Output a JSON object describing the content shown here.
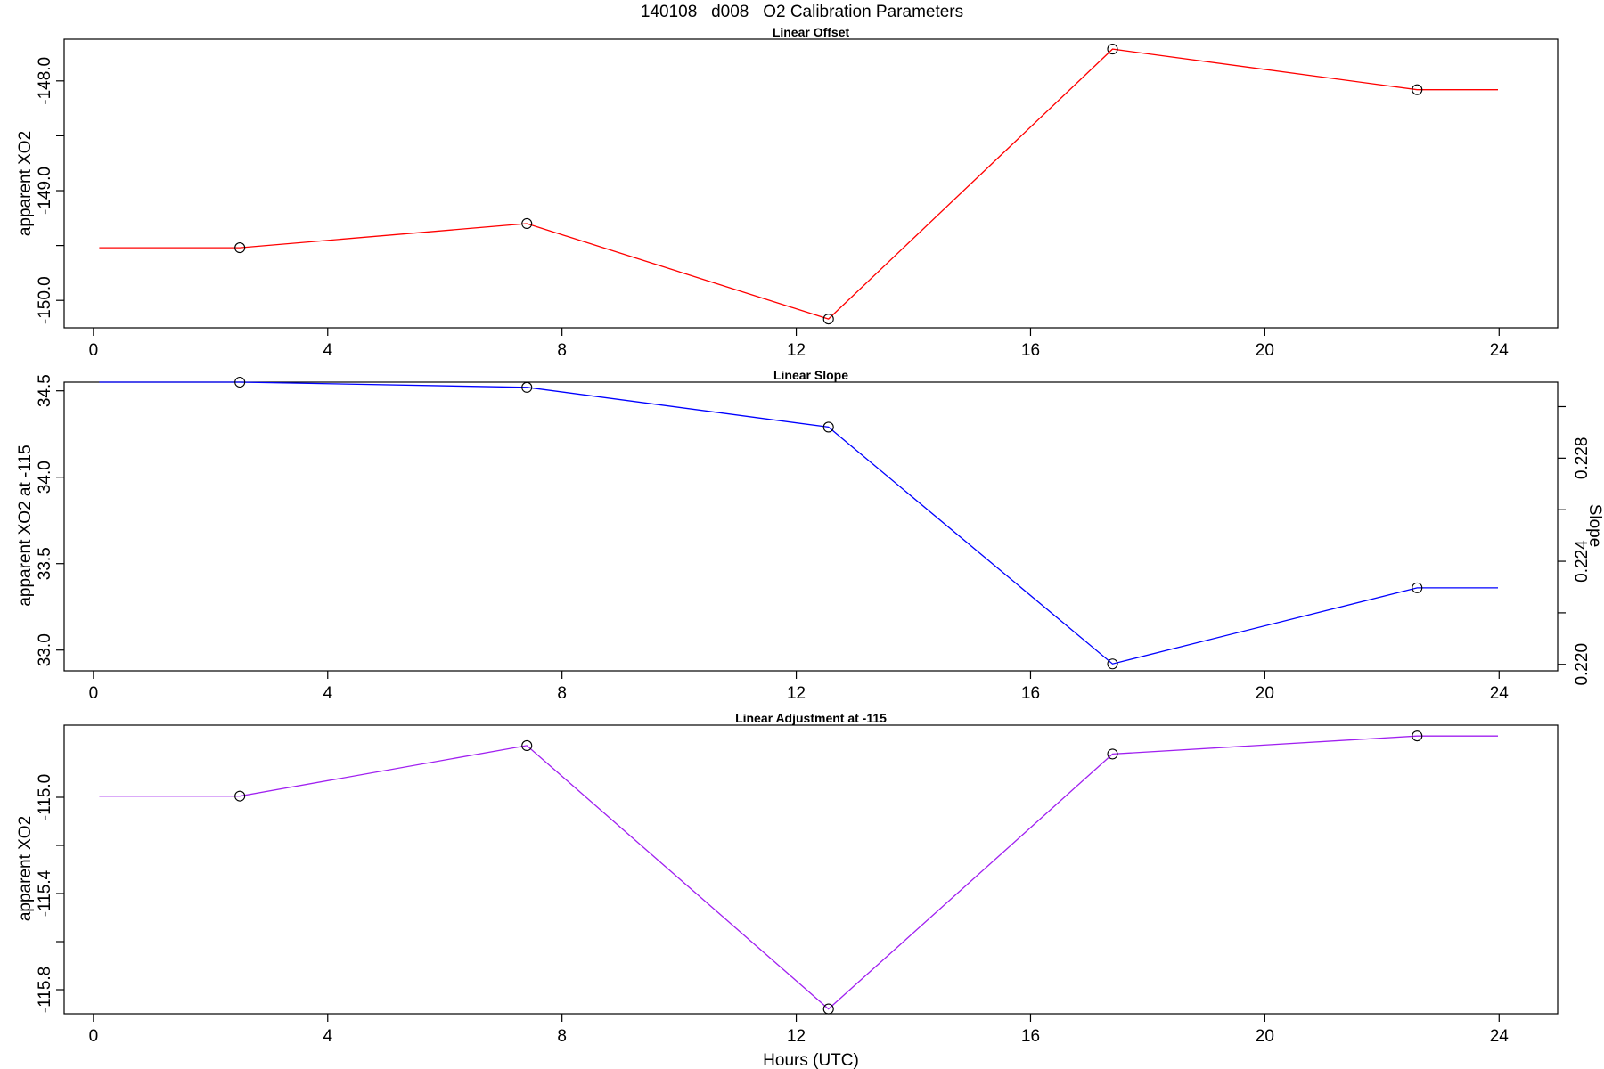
{
  "figure_title": "140108   d008   O2 Calibration Parameters",
  "chart_data": [
    {
      "type": "line",
      "title": "Linear Offset",
      "xlabel": "",
      "ylabel": "apparent XO2",
      "xlim": [
        -0.5,
        25
      ],
      "ylim": [
        -150.25,
        -147.62
      ],
      "x_ticks": [
        0,
        4,
        8,
        12,
        16,
        20,
        24
      ],
      "y_ticks": [
        -150.0,
        -149.5,
        -149.0,
        -148.5,
        -148.0
      ],
      "y_tick_labels": [
        "-150.0",
        "",
        "-149.0",
        "",
        "-148.0"
      ],
      "color": "#ff0000",
      "points": {
        "x": [
          2.5,
          7.4,
          12.55,
          17.4,
          22.6
        ],
        "y": [
          -149.52,
          -149.3,
          -150.17,
          -147.71,
          -148.08
        ]
      },
      "line": {
        "x": [
          0.1,
          2.5,
          7.4,
          12.55,
          17.4,
          22.6,
          23.98
        ],
        "y": [
          -149.52,
          -149.52,
          -149.3,
          -150.17,
          -147.71,
          -148.08,
          -148.08
        ]
      }
    },
    {
      "type": "line",
      "title": "Linear Slope",
      "xlabel": "",
      "ylabel": "apparent XO2 at -115",
      "y2label": "Slope",
      "xlim": [
        -0.5,
        25
      ],
      "ylim": [
        32.88,
        34.55
      ],
      "x_ticks": [
        0,
        4,
        8,
        12,
        16,
        20,
        24
      ],
      "y_ticks": [
        33.0,
        33.5,
        34.0,
        34.5
      ],
      "y_tick_labels": [
        "33.0",
        "33.5",
        "34.0",
        "34.5"
      ],
      "y2_ticks": [
        0.22,
        0.222,
        0.224,
        0.226,
        0.228,
        0.23
      ],
      "y2_tick_labels": [
        "0.220",
        "",
        "0.224",
        "",
        "0.228",
        ""
      ],
      "color": "#0000ff",
      "points": {
        "x": [
          2.5,
          7.4,
          12.55,
          17.4,
          22.6
        ],
        "y": [
          34.55,
          34.52,
          34.29,
          32.92,
          33.36
        ]
      },
      "line": {
        "x": [
          0.1,
          2.5,
          7.4,
          12.55,
          17.4,
          22.6,
          23.98
        ],
        "y": [
          34.55,
          34.55,
          34.52,
          34.29,
          32.92,
          33.36,
          33.36
        ]
      }
    },
    {
      "type": "line",
      "title": "Linear Adjustment at -115",
      "xlabel": "Hours (UTC)",
      "ylabel": "apparent XO2",
      "xlim": [
        -0.5,
        25
      ],
      "ylim": [
        -115.9,
        -114.7
      ],
      "x_ticks": [
        0,
        4,
        8,
        12,
        16,
        20,
        24
      ],
      "y_ticks": [
        -115.8,
        -115.6,
        -115.4,
        -115.2,
        -115.0
      ],
      "y_tick_labels": [
        "-115.8",
        "",
        "-115.4",
        "",
        "-115.0"
      ],
      "color": "#a020f0",
      "points": {
        "x": [
          2.5,
          7.4,
          12.55,
          17.4,
          22.6
        ],
        "y": [
          -114.995,
          -114.785,
          -115.88,
          -114.82,
          -114.745
        ]
      },
      "line": {
        "x": [
          0.1,
          2.5,
          7.4,
          12.55,
          17.4,
          22.6,
          23.98
        ],
        "y": [
          -114.995,
          -114.995,
          -114.785,
          -115.88,
          -114.82,
          -114.745,
          -114.745
        ]
      }
    }
  ]
}
